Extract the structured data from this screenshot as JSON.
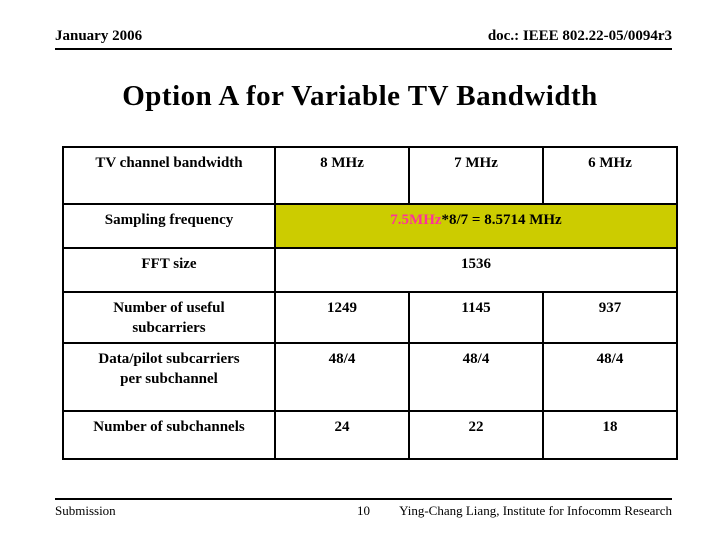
{
  "colors": {
    "highlight_bg": "#cccc00",
    "pink_text": "#ff3399"
  },
  "header": {
    "date": "January 2006",
    "doc_number": "doc.: IEEE 802.22-05/0094r3"
  },
  "title": "Option A for Variable TV Bandwidth",
  "table": {
    "rows": [
      {
        "label": "TV channel bandwidth",
        "cells": [
          "8 MHz",
          "7 MHz",
          "6 MHz"
        ]
      },
      {
        "label": "Sampling frequency",
        "highlight_value": "7.5MHz",
        "formula_rest": "*8/7 = 8.5714 MHz"
      },
      {
        "label": "FFT size",
        "value": "1536"
      },
      {
        "label": "Number of useful\nsubcarriers",
        "cells": [
          "1249",
          "1145",
          "937"
        ]
      },
      {
        "label": "Data/pilot subcarriers\nper subchannel",
        "cells": [
          "48/4",
          "48/4",
          "48/4"
        ]
      },
      {
        "label": "Number of subchannels",
        "cells": [
          "24",
          "22",
          "18"
        ]
      }
    ]
  },
  "footer": {
    "left": "Submission",
    "page_number": "10",
    "right": "Ying-Chang Liang, Institute for Infocomm Research"
  }
}
